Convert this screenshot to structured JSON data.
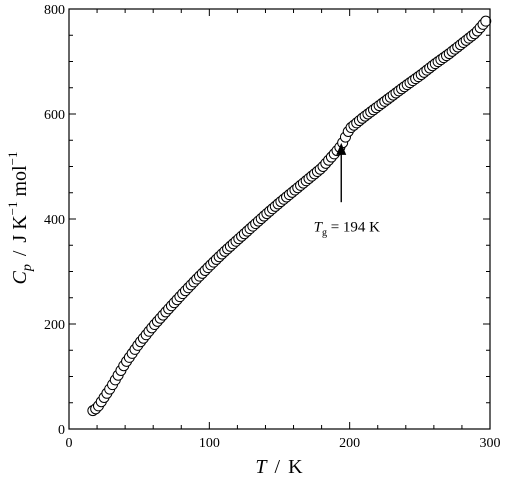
{
  "chart_data": {
    "type": "scatter",
    "marker": "open-circle",
    "x_label_var": "T",
    "x_label_unit": "K",
    "y_label_var_base": "C",
    "y_label_var_sub": "p",
    "y_label_unit_prefix": "J K",
    "y_label_unit_exp1": "−1",
    "y_label_unit_mid": " mol",
    "y_label_unit_exp2": "−1",
    "label_separator": "/",
    "xlim": [
      0,
      300
    ],
    "ylim": [
      0,
      800
    ],
    "x_ticks": [
      0,
      100,
      200,
      300
    ],
    "x_tick_labels": [
      "0",
      "100",
      "200",
      "300"
    ],
    "y_ticks": [
      0,
      200,
      400,
      600,
      800
    ],
    "y_tick_labels": [
      "0",
      "200",
      "400",
      "600",
      "800"
    ],
    "grid": false,
    "curve_anchors": [
      [
        17,
        35
      ],
      [
        20,
        40
      ],
      [
        30,
        80
      ],
      [
        40,
        125
      ],
      [
        50,
        163
      ],
      [
        60,
        196
      ],
      [
        70,
        226
      ],
      [
        80,
        255
      ],
      [
        90,
        283
      ],
      [
        100,
        310
      ],
      [
        110,
        336
      ],
      [
        120,
        360
      ],
      [
        130,
        384
      ],
      [
        140,
        408
      ],
      [
        150,
        431
      ],
      [
        160,
        453
      ],
      [
        170,
        475
      ],
      [
        180,
        497
      ],
      [
        190,
        527
      ],
      [
        194,
        540
      ],
      [
        200,
        572
      ],
      [
        210,
        594
      ],
      [
        220,
        614
      ],
      [
        230,
        634
      ],
      [
        240,
        654
      ],
      [
        250,
        673
      ],
      [
        260,
        694
      ],
      [
        270,
        713
      ],
      [
        280,
        734
      ],
      [
        290,
        755
      ],
      [
        298,
        780
      ]
    ],
    "point_step": 2,
    "annotation": {
      "var_base": "T",
      "var_sub": "g",
      "text": " = 194 K",
      "arrow_tip": [
        194,
        545
      ],
      "arrow_tail": [
        194,
        432
      ],
      "label_at": [
        185,
        386
      ]
    }
  }
}
